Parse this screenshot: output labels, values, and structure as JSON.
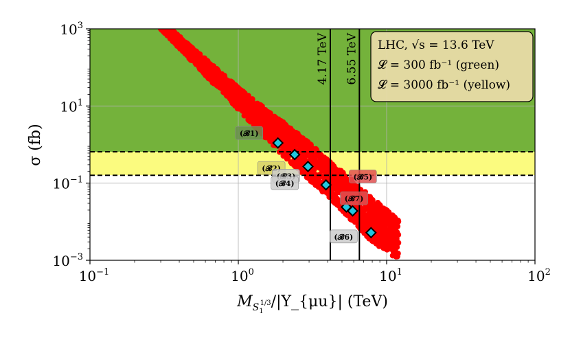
{
  "chart_data": {
    "type": "scatter",
    "x_scale": "log",
    "y_scale": "log",
    "xlim": [
      0.1,
      100
    ],
    "ylim": [
      0.001,
      1000
    ],
    "grid": true,
    "xlabel": "M_{S_1^{1/3}}/|Υ_{μu}| (TeV)",
    "ylabel": "σ (fb)",
    "x_ticks": [
      {
        "value": 0.1,
        "base": "10",
        "exp": "−1"
      },
      {
        "value": 1,
        "base": "10",
        "exp": "0"
      },
      {
        "value": 10,
        "base": "10",
        "exp": "1"
      },
      {
        "value": 100,
        "base": "10",
        "exp": "2"
      }
    ],
    "y_ticks": [
      {
        "value": 0.001,
        "base": "10",
        "exp": "−3"
      },
      {
        "value": 0.1,
        "base": "10",
        "exp": "−1"
      },
      {
        "value": 10,
        "base": "10",
        "exp": "1"
      },
      {
        "value": 1000,
        "base": "10",
        "exp": "3"
      }
    ],
    "regions": [
      {
        "name": "300 fb^-1 sensitivity",
        "y_from": 0.65,
        "y_to": 1000,
        "color": "#74b23b"
      },
      {
        "name": "3000 fb^-1 sensitivity",
        "y_from": 0.16,
        "y_to": 0.65,
        "color": "#fbfb7f"
      }
    ],
    "hlines": [
      {
        "y": 0.65,
        "style": "dashed"
      },
      {
        "y": 0.16,
        "style": "dashed"
      }
    ],
    "vlines": [
      {
        "x": 4.17,
        "label": "4.17 TeV"
      },
      {
        "x": 6.55,
        "label": "6.55 TeV"
      }
    ],
    "scan_band": {
      "color": "#ff0000",
      "upper_edge": [
        [
          0.35,
          1000
        ],
        [
          1.0,
          30
        ],
        [
          2.5,
          2
        ],
        [
          5.0,
          0.2
        ],
        [
          10.0,
          0.02
        ],
        [
          25.0,
          0.001
        ]
      ],
      "lower_edge": [
        [
          0.3,
          1000
        ],
        [
          0.8,
          20
        ],
        [
          2.0,
          0.5
        ],
        [
          4.5,
          0.03
        ],
        [
          8.0,
          0.003
        ],
        [
          12.0,
          0.001
        ]
      ]
    },
    "benchmarks": [
      {
        "label": "(𝓑1)",
        "x": 1.85,
        "y": 1.1
      },
      {
        "label": "(𝓑2)",
        "x": 2.4,
        "y": 0.55
      },
      {
        "label": "(𝓑3)",
        "x": 2.95,
        "y": 0.27
      },
      {
        "label": "(𝓑4)",
        "x": 3.9,
        "y": 0.09
      },
      {
        "label": "(𝓑5)",
        "x": 5.35,
        "y": 0.024
      },
      {
        "label": "(𝓑6)",
        "x": 7.85,
        "y": 0.0052
      },
      {
        "label": "(𝓑7)",
        "x": 5.9,
        "y": 0.019
      }
    ],
    "legend": {
      "position": "top-right",
      "lines": [
        "LHC, √s = 13.6 TeV",
        "𝓛 = 300 fb⁻¹ (green)",
        "𝓛 = 3000 fb⁻¹ (yellow)"
      ]
    }
  }
}
